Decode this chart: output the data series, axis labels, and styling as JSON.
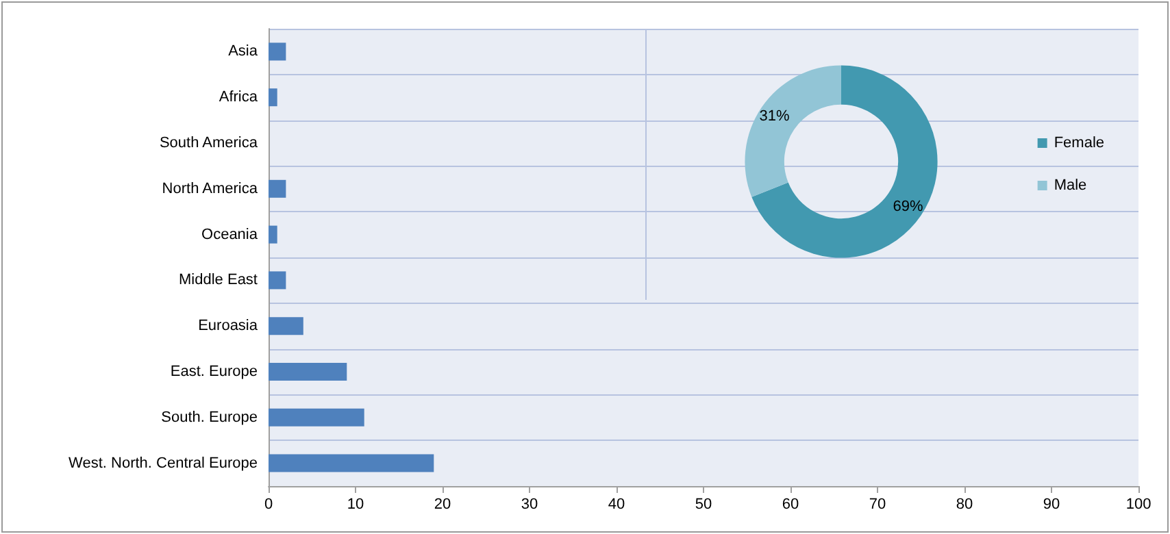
{
  "chart_data": [
    {
      "type": "bar",
      "orientation": "horizontal",
      "categories": [
        "Asia",
        "Africa",
        "South America",
        "North America",
        "Oceania",
        "Middle East",
        "Euroasia",
        "East. Europe",
        "South. Europe",
        "West. North. Central Europe"
      ],
      "values": [
        2,
        1,
        0,
        2,
        1,
        2,
        4,
        9,
        11,
        19
      ],
      "color": "#4f81bd",
      "xlim": [
        0,
        100
      ],
      "xticks": [
        0,
        10,
        20,
        30,
        40,
        50,
        60,
        70,
        80,
        90,
        100
      ],
      "grid": "y"
    },
    {
      "type": "donut",
      "categories": [
        "Female",
        "Male"
      ],
      "values": [
        69,
        31
      ],
      "colors": [
        "#4299b0",
        "#92c5d6"
      ],
      "value_labels": [
        "69%",
        "31%"
      ],
      "legend": "right"
    }
  ]
}
